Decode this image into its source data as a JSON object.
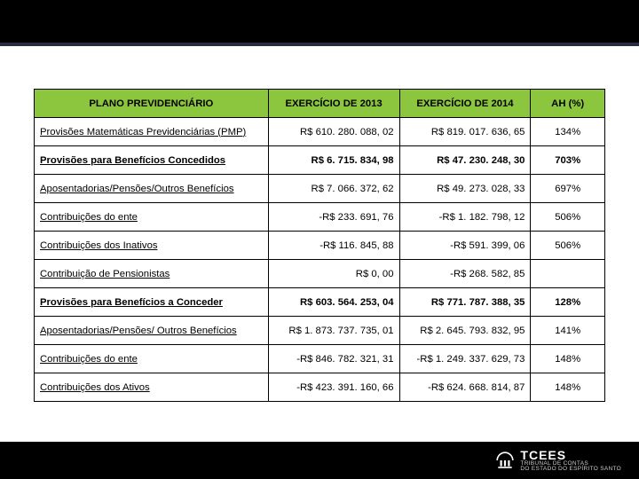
{
  "table": {
    "columns": [
      "PLANO PREVIDENCIÁRIO",
      "EXERCÍCIO DE 2013",
      "EXERCÍCIO DE 2014",
      "AH (%)"
    ],
    "col_widths": [
      "41%",
      "23%",
      "23%",
      "13%"
    ],
    "header_bg": "#8cc63f",
    "border_color": "#000000",
    "rows": [
      {
        "bold": false,
        "label": "Provisões Matemáticas Previdenciárias (PMP)",
        "v2013": "R$ 610. 280. 088, 02",
        "v2014": "R$ 819. 017. 636, 65",
        "ah": "134%"
      },
      {
        "bold": true,
        "label": "Provisões para Benefícios Concedidos",
        "v2013": "R$ 6. 715. 834, 98",
        "v2014": "R$ 47. 230. 248, 30",
        "ah": "703%"
      },
      {
        "bold": false,
        "label": "Aposentadorias/Pensões/Outros Benefícios",
        "v2013": "R$ 7. 066. 372, 62",
        "v2014": "R$ 49. 273. 028, 33",
        "ah": "697%"
      },
      {
        "bold": false,
        "label": "Contribuições do ente",
        "v2013": "-R$ 233. 691, 76",
        "v2014": "-R$ 1. 182. 798, 12",
        "ah": "506%"
      },
      {
        "bold": false,
        "label": "Contribuições dos Inativos",
        "v2013": "-R$ 116. 845, 88",
        "v2014": "-R$ 591. 399, 06",
        "ah": "506%"
      },
      {
        "bold": false,
        "label": "Contribuição de Pensionistas",
        "v2013": "R$ 0, 00",
        "v2014": "-R$ 268. 582, 85",
        "ah": ""
      },
      {
        "bold": true,
        "label": "Provisões para Benefícios a Conceder",
        "v2013": "R$ 603. 564. 253, 04",
        "v2014": "R$ 771. 787. 388, 35",
        "ah": "128%"
      },
      {
        "bold": false,
        "label": "Aposentadorias/Pensões/ Outros Benefícios",
        "v2013": "R$ 1. 873. 737. 735, 01",
        "v2014": "R$ 2. 645. 793. 832, 95",
        "ah": "141%"
      },
      {
        "bold": false,
        "label": "Contribuições do ente",
        "v2013": "-R$ 846. 782. 321, 31",
        "v2014": "-R$ 1. 249. 337. 629, 73",
        "ah": "148%"
      },
      {
        "bold": false,
        "label": "Contribuições dos Ativos",
        "v2013": "-R$ 423. 391. 160, 66",
        "v2014": "-R$ 624. 668. 814, 87",
        "ah": "148%"
      }
    ]
  },
  "footer": {
    "logo_abbr": "TCEES",
    "logo_sub": "TRIBUNAL DE CONTAS\nDO ESTADO DO ESPÍRITO SANTO"
  },
  "colors": {
    "top_bar_bg": "#000000",
    "top_bar_border": "#2a2a40",
    "footer_bg": "#000000",
    "page_bg": "#ffffff"
  }
}
